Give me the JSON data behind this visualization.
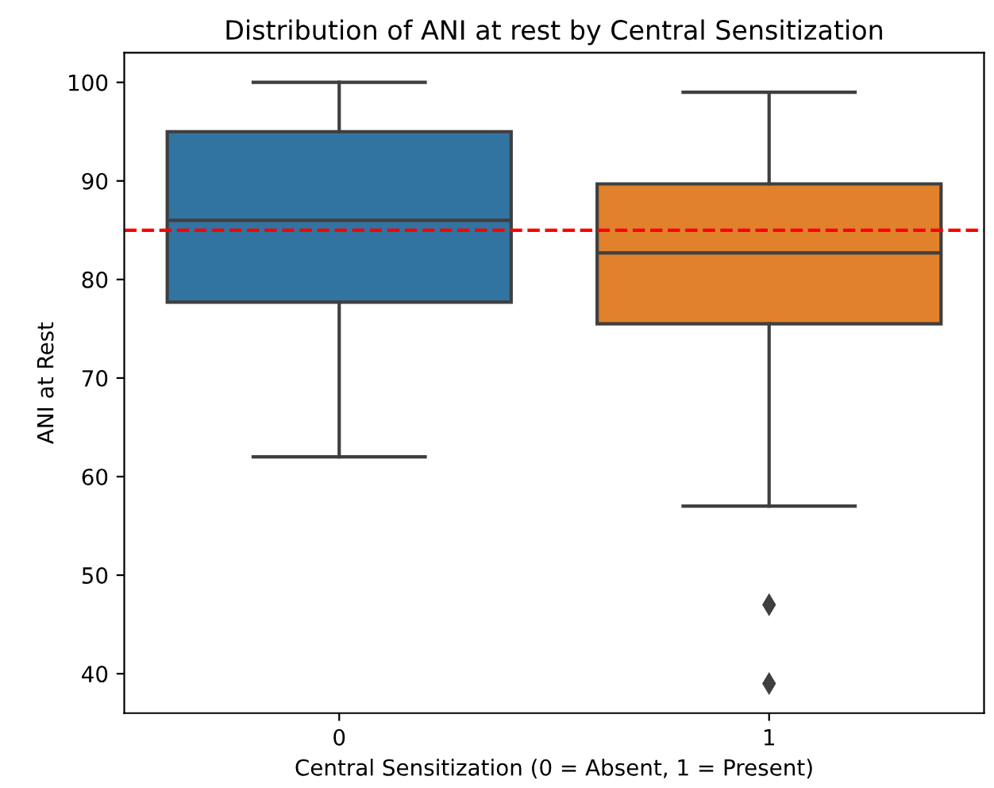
{
  "chart_data": {
    "type": "box",
    "title": "Distribution of ANI at rest by Central Sensitization",
    "xlabel": "Central Sensitization (0 = Absent, 1 = Present)",
    "ylabel": "ANI at Rest",
    "categories": [
      "0",
      "1"
    ],
    "colors": [
      "#3274a1",
      "#e1812c"
    ],
    "boxes": [
      {
        "low": 62,
        "q1": 77.7,
        "median": 86,
        "q3": 95,
        "high": 100
      },
      {
        "low": 57,
        "q1": 75.5,
        "median": 82.7,
        "q3": 89.7,
        "high": 99,
        "outliers": [
          47,
          39
        ]
      }
    ],
    "marker": "diamond",
    "ref_lines": [
      {
        "axis": "y",
        "value": 85,
        "color": "#ff0000",
        "line_style": "dashed"
      }
    ],
    "ylim": [
      36,
      103
    ],
    "yticks": [
      40,
      50,
      60,
      70,
      80,
      90,
      100
    ],
    "grid": false
  }
}
